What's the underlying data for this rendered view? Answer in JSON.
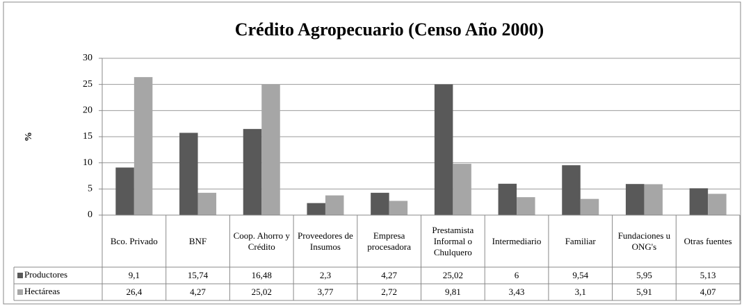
{
  "chart_data": {
    "type": "bar",
    "title": "Crédito Agropecuario (Censo Año 2000)",
    "y_label": "%",
    "categories": [
      "Bco. Privado",
      "BNF",
      "Coop. Ahorro y Crédito",
      "Proveedores de Insumos",
      "Empresa procesadora",
      "Prestamista Informal o Chulquero",
      "Intermediario",
      "Familiar",
      "Fundaciones u ONG's",
      "Otras fuentes"
    ],
    "series": [
      {
        "name": "Productores",
        "color": "#595959",
        "values": [
          9.1,
          15.74,
          16.48,
          2.3,
          4.27,
          25.02,
          6,
          9.54,
          5.95,
          5.13
        ],
        "value_labels": [
          "9,1",
          "15,74",
          "16,48",
          "2,3",
          "4,27",
          "25,02",
          "6",
          "9,54",
          "5,95",
          "5,13"
        ]
      },
      {
        "name": "Hectáreas",
        "color": "#a6a6a6",
        "values": [
          26.4,
          4.27,
          25.02,
          3.77,
          2.72,
          9.81,
          3.43,
          3.1,
          5.91,
          4.07
        ],
        "value_labels": [
          "26,4",
          "4,27",
          "25,02",
          "3,77",
          "2,72",
          "9,81",
          "3,43",
          "3,1",
          "5,91",
          "4,07"
        ]
      }
    ],
    "ylim": [
      0,
      30
    ],
    "yticks": [
      0,
      5,
      10,
      15,
      20,
      25,
      30
    ],
    "grid": true
  }
}
